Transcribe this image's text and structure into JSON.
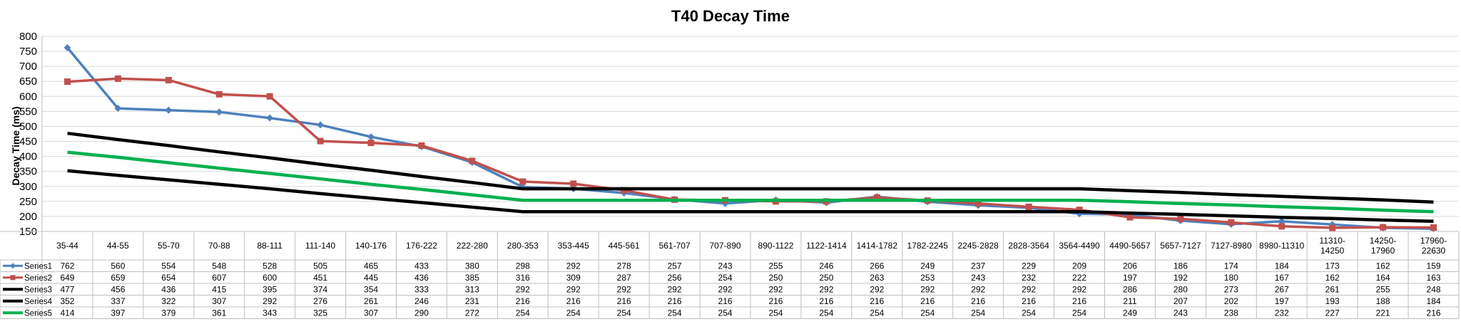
{
  "chart_data": {
    "type": "line",
    "title": "T40 Decay Time",
    "xlabel": "",
    "ylabel": "Decay Time (ms)",
    "ylim": [
      150,
      800
    ],
    "yticks": [
      150,
      200,
      250,
      300,
      350,
      400,
      450,
      500,
      550,
      600,
      650,
      700,
      750,
      800
    ],
    "grid": true,
    "legend": "data-table",
    "categories": [
      [
        "35-44"
      ],
      [
        "44-55"
      ],
      [
        "55-70"
      ],
      [
        "70-88"
      ],
      [
        "88-111"
      ],
      [
        "111-140"
      ],
      [
        "140-176"
      ],
      [
        "176-222"
      ],
      [
        "222-280"
      ],
      [
        "280-353"
      ],
      [
        "353-445"
      ],
      [
        "445-561"
      ],
      [
        "561-707"
      ],
      [
        "707-890"
      ],
      [
        "890-1122"
      ],
      [
        "1122-1414"
      ],
      [
        "1414-1782"
      ],
      [
        "1782-2245"
      ],
      [
        "2245-2828"
      ],
      [
        "2828-3564"
      ],
      [
        "3564-4490"
      ],
      [
        "4490-5657"
      ],
      [
        "5657-7127"
      ],
      [
        "7127-8980"
      ],
      [
        "8980-11310"
      ],
      [
        "11310-",
        "14250"
      ],
      [
        "14250-",
        "17960"
      ],
      [
        "17960-",
        "22630"
      ]
    ],
    "series": [
      {
        "name": "Series1",
        "color": "#4f81bd",
        "marker": "diamond",
        "values": [
          762,
          560,
          554,
          548,
          528,
          505,
          465,
          433,
          380,
          298,
          292,
          278,
          257,
          243,
          255,
          246,
          266,
          249,
          237,
          229,
          209,
          206,
          186,
          174,
          184,
          173,
          162,
          159
        ]
      },
      {
        "name": "Series2",
        "color": "#c0504d",
        "marker": "square",
        "values": [
          649,
          659,
          654,
          607,
          600,
          451,
          445,
          436,
          385,
          316,
          309,
          287,
          256,
          254,
          250,
          250,
          263,
          253,
          243,
          232,
          222,
          197,
          192,
          180,
          167,
          162,
          164,
          163
        ]
      },
      {
        "name": "Series3",
        "color": "#000000",
        "marker": "none",
        "values": [
          477,
          456,
          436,
          415,
          395,
          374,
          354,
          333,
          313,
          292,
          292,
          292,
          292,
          292,
          292,
          292,
          292,
          292,
          292,
          292,
          292,
          286,
          280,
          273,
          267,
          261,
          255,
          248
        ]
      },
      {
        "name": "Series4",
        "color": "#000000",
        "marker": "none",
        "values": [
          352,
          337,
          322,
          307,
          292,
          276,
          261,
          246,
          231,
          216,
          216,
          216,
          216,
          216,
          216,
          216,
          216,
          216,
          216,
          216,
          216,
          211,
          207,
          202,
          197,
          193,
          188,
          184
        ]
      },
      {
        "name": "Series5",
        "color": "#00b050",
        "marker": "none",
        "values": [
          414,
          397,
          379,
          361,
          343,
          325,
          307,
          290,
          272,
          254,
          254,
          254,
          254,
          254,
          254,
          254,
          254,
          254,
          254,
          254,
          254,
          249,
          243,
          238,
          232,
          227,
          221,
          216
        ]
      }
    ]
  }
}
